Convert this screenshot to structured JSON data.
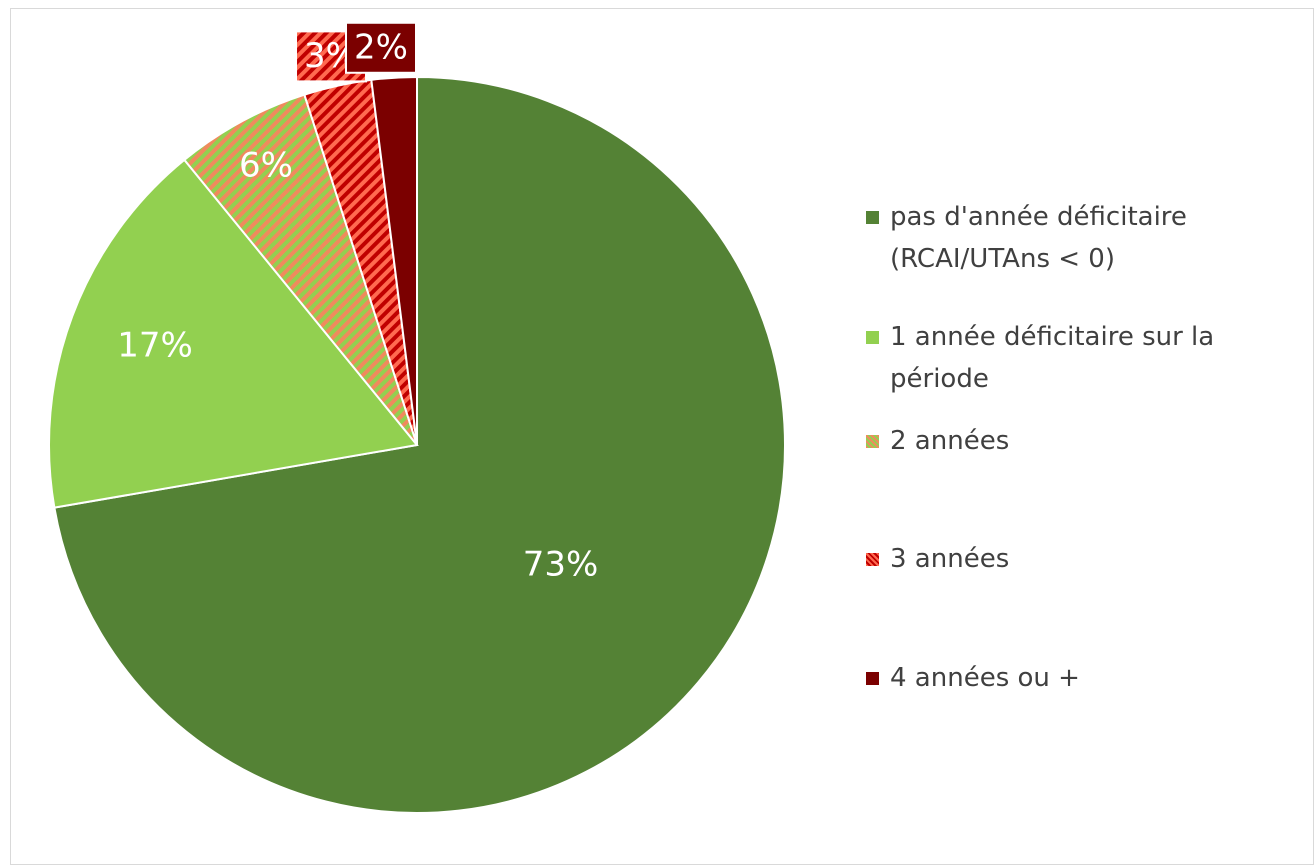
{
  "chart_data": {
    "type": "pie",
    "categories": [
      "pas d'année déficitaire (RCAI/UTAns < 0)",
      "1 année déficitaire sur la période",
      "2 années",
      "3 années",
      "4 années ou +"
    ],
    "values": [
      73,
      17,
      6,
      3,
      2
    ],
    "value_labels": [
      "73%",
      "17%",
      "6%",
      "3%",
      "2%"
    ],
    "colors": [
      "#548235",
      "#92d050",
      "#92d050",
      "#c00000",
      "#7b0000"
    ],
    "hatch": [
      null,
      null,
      "#f08a5d",
      "#ff6a50",
      null
    ],
    "legend": "right"
  }
}
